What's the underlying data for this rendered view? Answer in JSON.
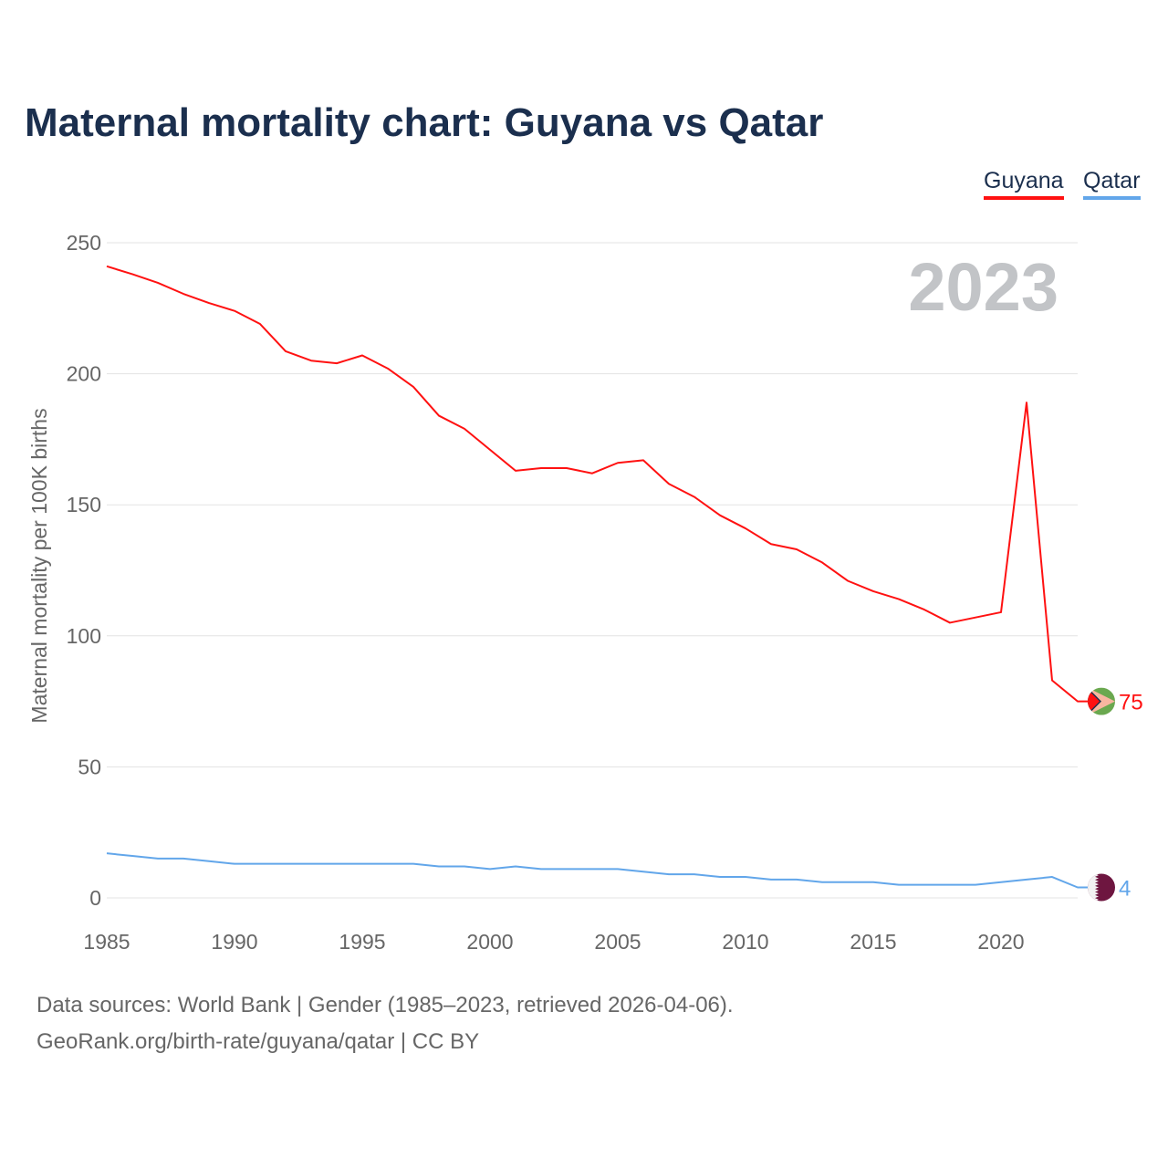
{
  "chart_data": {
    "type": "line",
    "title": "Maternal mortality chart: Guyana vs Qatar",
    "xlabel": "",
    "ylabel": "Maternal mortality per 100K births",
    "xlim": [
      1985,
      2023
    ],
    "ylim": [
      0,
      250
    ],
    "x_ticks": [
      "1985",
      "1990",
      "1995",
      "2000",
      "2005",
      "2010",
      "2015",
      "2020"
    ],
    "y_ticks": [
      "0",
      "50",
      "100",
      "150",
      "200",
      "250"
    ],
    "grid": true,
    "legend_placement": "top-right",
    "year_label": "2023",
    "x": [
      1985,
      1986,
      1987,
      1988,
      1989,
      1990,
      1991,
      1992,
      1993,
      1994,
      1995,
      1996,
      1997,
      1998,
      1999,
      2000,
      2001,
      2002,
      2003,
      2004,
      2005,
      2006,
      2007,
      2008,
      2009,
      2010,
      2011,
      2012,
      2013,
      2014,
      2015,
      2016,
      2017,
      2018,
      2019,
      2020,
      2021,
      2022,
      2023
    ],
    "series": [
      {
        "name": "Guyana",
        "color": "#ff1111",
        "end_label": "75",
        "values": [
          241,
          238,
          234.7,
          230.5,
          227,
          224,
          219,
          208.6,
          205,
          204,
          207,
          202,
          195,
          184,
          179,
          171,
          163,
          164,
          164,
          162,
          166,
          167,
          158,
          153,
          146,
          141,
          135,
          133,
          128,
          121,
          117,
          114,
          110,
          105,
          107,
          109,
          189,
          83,
          75
        ]
      },
      {
        "name": "Qatar",
        "color": "#62a6ea",
        "end_label": "4",
        "values": [
          17,
          16,
          15,
          15,
          14,
          13,
          13,
          13,
          13,
          13,
          13,
          13,
          13,
          12,
          12,
          11,
          12,
          11,
          11,
          11,
          11,
          10,
          9,
          9,
          8,
          8,
          7,
          7,
          6,
          6,
          6,
          5,
          5,
          5,
          5,
          6,
          7,
          8,
          4
        ]
      }
    ]
  },
  "footer": {
    "line1": "Data sources: World Bank | Gender (1985–2023, retrieved 2026-04-06).",
    "line2": "GeoRank.org/birth-rate/guyana/qatar | CC BY"
  }
}
